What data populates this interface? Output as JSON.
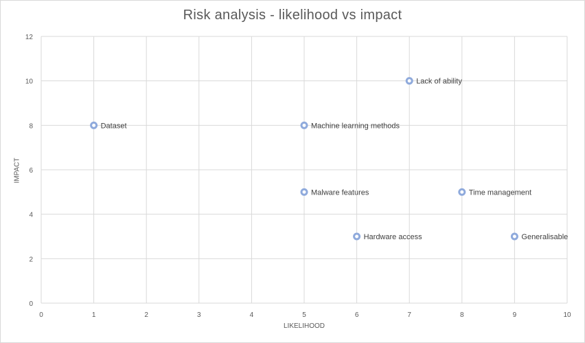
{
  "chart_data": {
    "type": "scatter",
    "title": "Risk analysis - likelihood vs impact",
    "xlabel": "LIKELIHOOD",
    "ylabel": "IMPACT",
    "xlim": [
      0,
      10
    ],
    "ylim": [
      0,
      12
    ],
    "x_ticks": [
      "0",
      "1",
      "2",
      "3",
      "4",
      "5",
      "6",
      "7",
      "8",
      "9",
      "10"
    ],
    "y_ticks": [
      "0",
      "2",
      "4",
      "6",
      "8",
      "10",
      "12"
    ],
    "grid": true,
    "legend": "none",
    "marker_color": "#8faadc",
    "points": [
      {
        "label": "Dataset",
        "x": 1,
        "y": 8
      },
      {
        "label": "Machine learning methods",
        "x": 5,
        "y": 8
      },
      {
        "label": "Malware features",
        "x": 5,
        "y": 5
      },
      {
        "label": "Hardware access",
        "x": 6,
        "y": 3
      },
      {
        "label": "Lack of ability",
        "x": 7,
        "y": 10
      },
      {
        "label": "Time management",
        "x": 8,
        "y": 5
      },
      {
        "label": "Generalisable",
        "x": 9,
        "y": 3
      }
    ]
  }
}
